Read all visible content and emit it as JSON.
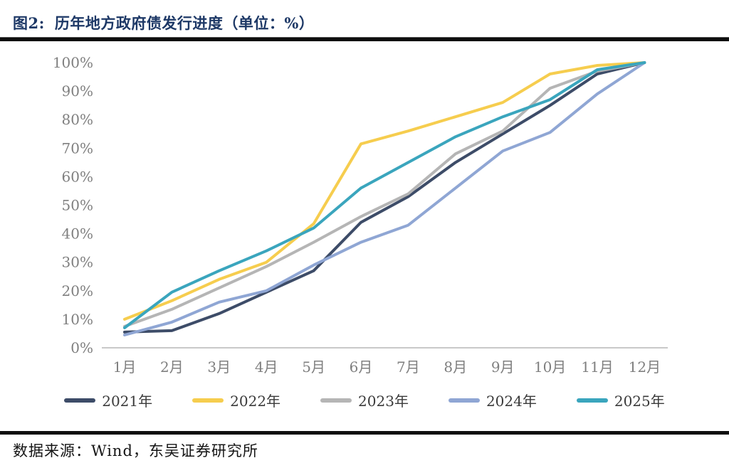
{
  "header": {
    "figure_label": "图2:",
    "title": "历年地方政府债发行进度（单位：%）"
  },
  "footer": {
    "source": "数据来源：Wind，东吴证券研究所"
  },
  "chart_data": {
    "type": "line",
    "title": "历年地方政府债发行进度（单位：%）",
    "xlabel": "",
    "ylabel": "",
    "ylim": [
      0,
      100
    ],
    "tick_step": 10,
    "y_tick_labels": [
      "0%",
      "10%",
      "20%",
      "30%",
      "40%",
      "50%",
      "60%",
      "70%",
      "80%",
      "90%",
      "100%"
    ],
    "categories": [
      "1月",
      "2月",
      "3月",
      "4月",
      "5月",
      "6月",
      "7月",
      "8月",
      "9月",
      "10月",
      "11月",
      "12月"
    ],
    "grid": false,
    "legend_position": "bottom",
    "series": [
      {
        "name": "2021年",
        "color": "#3d4c68",
        "values": [
          5.5,
          6,
          12,
          19.5,
          27,
          44,
          53,
          65,
          75,
          85,
          96,
          100
        ]
      },
      {
        "name": "2022年",
        "color": "#f6cd4e",
        "values": [
          10,
          16.5,
          24,
          30,
          43.5,
          71.5,
          76,
          81,
          86,
          96,
          99,
          100
        ]
      },
      {
        "name": "2023年",
        "color": "#b5b5b5",
        "values": [
          7.5,
          13.5,
          21,
          28.5,
          37,
          46,
          54,
          68,
          76,
          91,
          97,
          100
        ]
      },
      {
        "name": "2024年",
        "color": "#8fa6d4",
        "values": [
          4.5,
          9,
          16,
          20,
          29,
          37,
          43,
          56,
          69,
          75.5,
          89,
          100
        ]
      },
      {
        "name": "2025年",
        "color": "#3aa5bd",
        "values": [
          7,
          19.5,
          27,
          34,
          42,
          56,
          65,
          74,
          81,
          87,
          97.5,
          100
        ]
      }
    ]
  }
}
